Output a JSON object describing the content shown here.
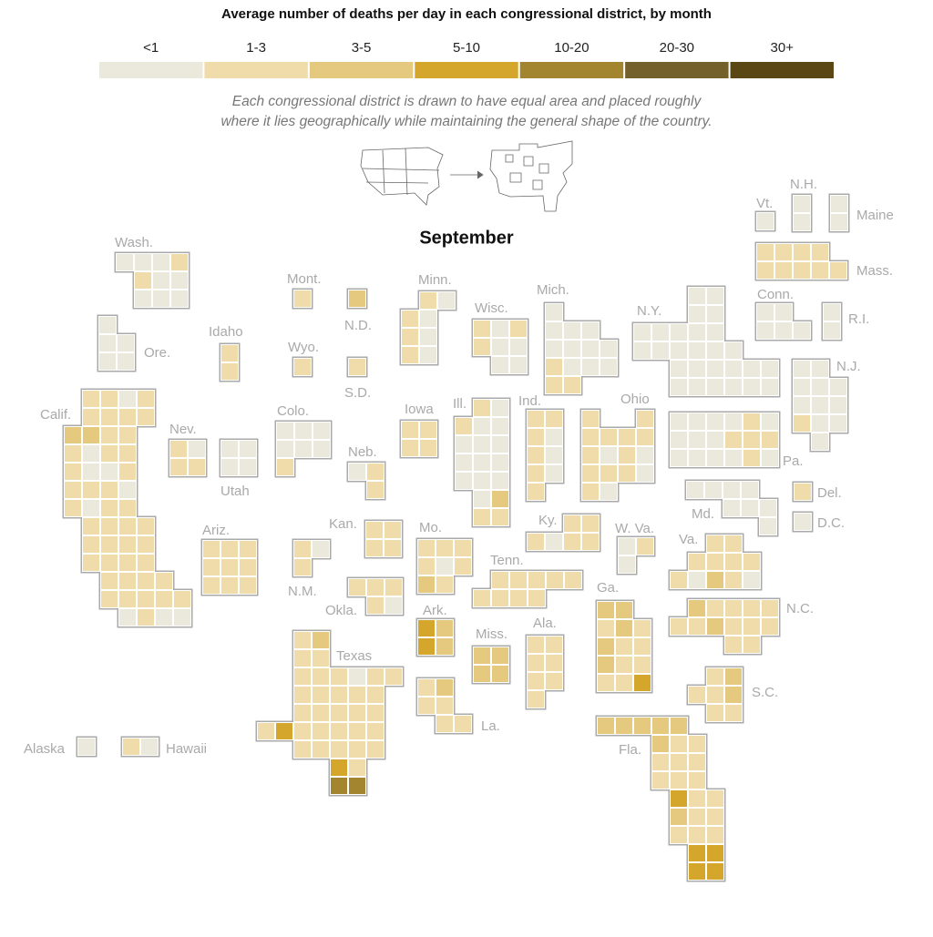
{
  "title": "Average number of deaths per day in each congressional district, by month",
  "legend": {
    "bins": [
      "<1",
      "1-3",
      "3-5",
      "5-10",
      "10-20",
      "20-30",
      "30+"
    ],
    "colors": [
      "#ebe9dc",
      "#f0dcaa",
      "#e5c97e",
      "#d4a72c",
      "#a3842f",
      "#74602a",
      "#5a4713"
    ]
  },
  "note": [
    "Each congressional district is drawn to have equal area and placed roughly",
    "where it lies geographically while maintaining the general shape of the country."
  ],
  "month": "September",
  "states": [
    {
      "name": "Wash.",
      "districts": [
        0,
        0,
        0,
        1,
        1,
        0,
        0,
        0,
        0,
        0
      ]
    },
    {
      "name": "Ore.",
      "districts": [
        0,
        0,
        0,
        0,
        0
      ]
    },
    {
      "name": "Calif.",
      "districts": [
        1,
        1,
        0,
        1,
        1,
        1,
        1,
        1,
        2,
        2,
        1,
        1,
        1,
        0,
        1,
        1,
        1,
        0,
        0,
        1,
        1,
        1,
        1,
        0,
        1,
        0,
        1,
        1,
        1,
        1,
        1,
        1,
        1,
        1,
        1,
        1,
        1,
        1,
        1,
        1,
        1,
        1,
        1,
        1,
        1,
        1,
        1,
        1,
        1,
        0,
        1,
        0,
        0
      ]
    },
    {
      "name": "Nev.",
      "districts": [
        1,
        0,
        1,
        1
      ]
    },
    {
      "name": "Utah",
      "districts": [
        0,
        0,
        0,
        0
      ]
    },
    {
      "name": "Idaho",
      "districts": [
        1,
        1
      ]
    },
    {
      "name": "Mont.",
      "districts": [
        1
      ]
    },
    {
      "name": "Wyo.",
      "districts": [
        1
      ]
    },
    {
      "name": "N.D.",
      "districts": [
        2
      ]
    },
    {
      "name": "S.D.",
      "districts": [
        1
      ]
    },
    {
      "name": "Colo.",
      "districts": [
        0,
        0,
        0,
        0,
        0,
        0,
        1
      ]
    },
    {
      "name": "Ariz.",
      "districts": [
        1,
        1,
        1,
        1,
        1,
        1,
        1,
        1,
        1
      ]
    },
    {
      "name": "N.M.",
      "districts": [
        1,
        0,
        1
      ]
    },
    {
      "name": "Neb.",
      "districts": [
        0,
        1,
        1
      ]
    },
    {
      "name": "Kan.",
      "districts": [
        1,
        1,
        1,
        1
      ]
    },
    {
      "name": "Okla.",
      "districts": [
        1,
        1,
        1,
        1,
        0
      ]
    },
    {
      "name": "Texas",
      "districts": [
        1,
        2,
        1,
        1,
        1,
        1,
        1,
        0,
        1,
        1,
        1,
        1,
        1,
        1,
        1,
        1,
        1,
        1,
        1,
        1,
        1,
        3,
        1,
        1,
        1,
        1,
        1,
        1,
        1,
        1,
        1,
        1,
        3,
        1,
        4,
        4
      ]
    },
    {
      "name": "Alaska",
      "districts": [
        0
      ]
    },
    {
      "name": "Hawaii",
      "districts": [
        1,
        0
      ]
    },
    {
      "name": "Minn.",
      "districts": [
        1,
        0,
        1,
        0,
        1,
        0,
        1,
        0
      ]
    },
    {
      "name": "Iowa",
      "districts": [
        1,
        1,
        1,
        1
      ]
    },
    {
      "name": "Wisc.",
      "districts": [
        1,
        0,
        1,
        1,
        0,
        0,
        0,
        0
      ]
    },
    {
      "name": "Ill.",
      "districts": [
        1,
        0,
        1,
        0,
        0,
        0,
        0,
        0,
        0,
        0,
        0,
        0,
        0,
        0,
        0,
        2,
        1,
        1
      ]
    },
    {
      "name": "Ind.",
      "districts": [
        1,
        1,
        1,
        0,
        1,
        0,
        1,
        0,
        1
      ]
    },
    {
      "name": "Mich.",
      "districts": [
        0,
        0,
        0,
        0,
        0,
        0,
        0,
        0,
        1,
        0,
        0,
        0,
        1,
        1
      ]
    },
    {
      "name": "Ohio",
      "districts": [
        1,
        1,
        1,
        1,
        1,
        1,
        1,
        0,
        1,
        0,
        1,
        1,
        1,
        0,
        1,
        0
      ]
    },
    {
      "name": "Ky.",
      "districts": [
        1,
        1,
        1,
        0,
        1,
        1
      ]
    },
    {
      "name": "Tenn.",
      "districts": [
        1,
        1,
        1,
        1,
        1,
        1,
        1,
        1,
        1
      ]
    },
    {
      "name": "Mo.",
      "districts": [
        1,
        1,
        1,
        1,
        0,
        1,
        2,
        1
      ]
    },
    {
      "name": "Ark.",
      "districts": [
        3,
        2,
        3,
        2
      ]
    },
    {
      "name": "Miss.",
      "districts": [
        2,
        2,
        2,
        2
      ]
    },
    {
      "name": "La.",
      "districts": [
        1,
        2,
        1,
        1,
        1,
        1
      ]
    },
    {
      "name": "Ala.",
      "districts": [
        1,
        1,
        1,
        1,
        1,
        1,
        1
      ]
    },
    {
      "name": "Ga.",
      "districts": [
        2,
        2,
        1,
        2,
        1,
        2,
        1,
        1,
        2,
        1,
        1,
        1,
        1,
        3
      ]
    },
    {
      "name": "Fla.",
      "districts": [
        2,
        2,
        2,
        2,
        2,
        2,
        1,
        1,
        1,
        1,
        1,
        1,
        1,
        1,
        3,
        1,
        1,
        2,
        1,
        1,
        1,
        1,
        1,
        3,
        3,
        3,
        3
      ]
    },
    {
      "name": "S.C.",
      "districts": [
        1,
        2,
        1,
        1,
        2,
        1,
        1
      ]
    },
    {
      "name": "N.C.",
      "districts": [
        2,
        1,
        1,
        1,
        1,
        1,
        1,
        2,
        1,
        1,
        1,
        1,
        1
      ]
    },
    {
      "name": "Va.",
      "districts": [
        1,
        1,
        1,
        1,
        1,
        1,
        1,
        0,
        2,
        1,
        0
      ]
    },
    {
      "name": "W. Va.",
      "districts": [
        0,
        1,
        0
      ]
    },
    {
      "name": "Md.",
      "districts": [
        0,
        0,
        0,
        0,
        0,
        0,
        0,
        0
      ]
    },
    {
      "name": "Del.",
      "districts": [
        1
      ]
    },
    {
      "name": "D.C.",
      "districts": [
        0
      ]
    },
    {
      "name": "Pa.",
      "districts": [
        0,
        0,
        0,
        0,
        1,
        0,
        0,
        0,
        0,
        1,
        1,
        1,
        0,
        0,
        0,
        0,
        1,
        0
      ]
    },
    {
      "name": "N.J.",
      "districts": [
        0,
        0,
        0,
        0,
        0,
        0,
        0,
        0,
        1,
        0,
        0,
        0
      ]
    },
    {
      "name": "N.Y.",
      "districts": [
        0,
        0,
        0,
        0,
        0,
        0,
        0,
        0,
        0,
        0,
        0,
        0,
        0,
        0,
        0,
        0,
        0,
        0,
        0,
        0,
        0,
        0,
        0,
        0,
        0,
        0,
        0
      ]
    },
    {
      "name": "Conn.",
      "districts": [
        0,
        0,
        0,
        0,
        0
      ]
    },
    {
      "name": "R.I.",
      "districts": [
        0,
        0
      ]
    },
    {
      "name": "Mass.",
      "districts": [
        1,
        1,
        1,
        1,
        1,
        1,
        1,
        1,
        1
      ]
    },
    {
      "name": "Vt.",
      "districts": [
        0
      ]
    },
    {
      "name": "N.H.",
      "districts": [
        0,
        0
      ]
    },
    {
      "name": "Maine",
      "districts": [
        0,
        0
      ]
    }
  ]
}
